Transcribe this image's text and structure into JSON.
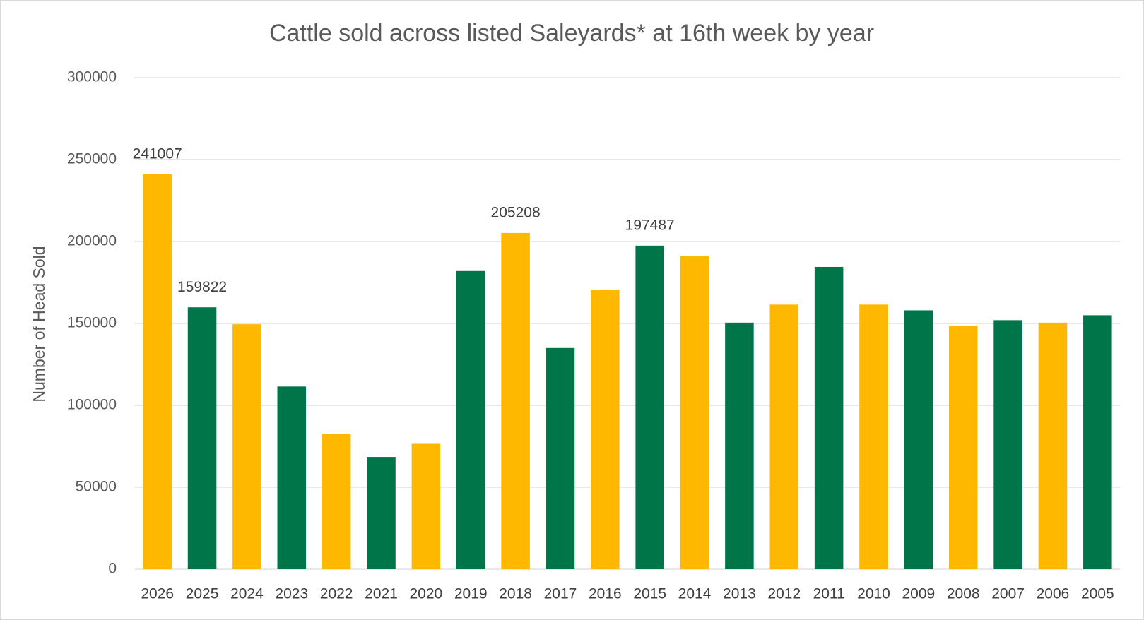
{
  "chart_data": {
    "type": "bar",
    "title": "Cattle sold across listed Saleyards* at 16th week by year",
    "y_label": "Number of Head Sold",
    "categories": [
      "2026",
      "2025",
      "2024",
      "2023",
      "2022",
      "2021",
      "2020",
      "2019",
      "2018",
      "2017",
      "2016",
      "2015",
      "2014",
      "2013",
      "2012",
      "2011",
      "2010",
      "2009",
      "2008",
      "2007",
      "2006",
      "2005"
    ],
    "values": [
      241007,
      159822,
      149500,
      111500,
      82500,
      68500,
      76500,
      182000,
      205208,
      135000,
      170500,
      197487,
      191000,
      150500,
      161500,
      184500,
      161500,
      158000,
      148500,
      152000,
      150500,
      155000
    ],
    "value_labels": [
      "241007",
      "159822",
      null,
      null,
      null,
      null,
      null,
      null,
      "205208",
      null,
      null,
      "197487",
      null,
      null,
      null,
      null,
      null,
      null,
      null,
      null,
      null,
      null
    ],
    "colors": [
      "#ffb800",
      "#00754a",
      "#ffb800",
      "#00754a",
      "#ffb800",
      "#00754a",
      "#ffb800",
      "#00754a",
      "#ffb800",
      "#00754a",
      "#ffb800",
      "#00754a",
      "#ffb800",
      "#00754a",
      "#ffb800",
      "#00754a",
      "#ffb800",
      "#00754a",
      "#ffb800",
      "#00754a",
      "#ffb800",
      "#00754a"
    ],
    "ylim": [
      0,
      300000
    ],
    "yticks": [
      0,
      50000,
      100000,
      150000,
      200000,
      250000,
      300000
    ],
    "grid": true
  }
}
